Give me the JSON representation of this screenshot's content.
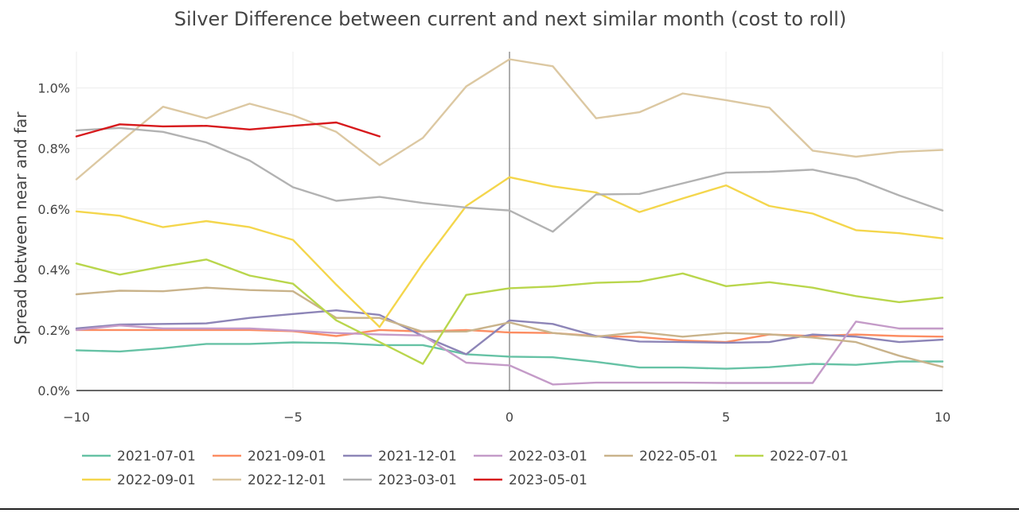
{
  "chart_data": {
    "type": "line",
    "title": "Silver Difference between current and next similar month (cost to roll)",
    "xlabel": "",
    "ylabel": "Spread between near and far",
    "xlim": [
      -10,
      10
    ],
    "ylim": [
      0,
      1.12
    ],
    "x_ticks": [
      -10,
      -5,
      0,
      5,
      10
    ],
    "x_tick_labels": [
      "−10",
      "−5",
      "0",
      "5",
      "10"
    ],
    "y_ticks": [
      0,
      0.2,
      0.4,
      0.6,
      0.8,
      1.0
    ],
    "y_tick_labels": [
      "0.0%",
      "0.2%",
      "0.4%",
      "0.6%",
      "0.8%",
      "1.0%"
    ],
    "grid": true,
    "legend_position": "bottom",
    "series": [
      {
        "name": "2021-07-01",
        "color": "#66c2a5",
        "x": [
          -10,
          -9,
          -8,
          -7,
          -6,
          -5,
          -4,
          -3,
          -2,
          -1,
          0,
          1,
          2,
          3,
          4,
          5,
          6,
          7,
          8,
          9,
          10
        ],
        "y": [
          0.133,
          0.129,
          0.14,
          0.154,
          0.154,
          0.159,
          0.157,
          0.15,
          0.15,
          0.12,
          0.112,
          0.11,
          0.095,
          0.076,
          0.076,
          0.072,
          0.077,
          0.088,
          0.085,
          0.096,
          0.096
        ]
      },
      {
        "name": "2021-09-01",
        "color": "#fc8d62",
        "x": [
          -10,
          -9,
          -8,
          -7,
          -6,
          -5,
          -4,
          -3,
          -2,
          -1,
          0,
          1,
          2,
          3,
          4,
          5,
          6,
          7,
          8,
          9,
          10
        ],
        "y": [
          0.2,
          0.2,
          0.2,
          0.2,
          0.2,
          0.196,
          0.18,
          0.2,
          0.195,
          0.2,
          0.192,
          0.19,
          0.18,
          0.177,
          0.165,
          0.16,
          0.185,
          0.18,
          0.185,
          0.18,
          0.178
        ]
      },
      {
        "name": "2021-12-01",
        "color": "#8d85b7",
        "x": [
          -10,
          -9,
          -8,
          -7,
          -6,
          -5,
          -4,
          -3,
          -2,
          -1,
          0,
          1,
          2,
          3,
          4,
          5,
          6,
          7,
          8,
          9,
          10
        ],
        "y": [
          0.205,
          0.218,
          0.22,
          0.222,
          0.24,
          0.253,
          0.265,
          0.25,
          0.18,
          0.12,
          0.232,
          0.22,
          0.18,
          0.162,
          0.16,
          0.158,
          0.16,
          0.185,
          0.178,
          0.16,
          0.168
        ]
      },
      {
        "name": "2022-03-01",
        "color": "#c49bc8",
        "x": [
          -10,
          -9,
          -8,
          -7,
          -6,
          -5,
          -4,
          -3,
          -2,
          -1,
          0,
          1,
          2,
          3,
          4,
          5,
          6,
          7,
          8,
          9,
          10
        ],
        "y": [
          0.2,
          0.215,
          0.205,
          0.205,
          0.205,
          0.198,
          0.19,
          0.185,
          0.182,
          0.092,
          0.083,
          0.02,
          0.026,
          0.026,
          0.026,
          0.025,
          0.025,
          0.025,
          0.228,
          0.205,
          0.205
        ]
      },
      {
        "name": "2022-05-01",
        "color": "#c9b38b",
        "x": [
          -10,
          -9,
          -8,
          -7,
          -6,
          -5,
          -4,
          -3,
          -2,
          -1,
          0,
          1,
          2,
          3,
          4,
          5,
          6,
          7,
          8,
          9,
          10
        ],
        "y": [
          0.318,
          0.33,
          0.328,
          0.34,
          0.332,
          0.328,
          0.24,
          0.24,
          0.194,
          0.195,
          0.225,
          0.19,
          0.178,
          0.193,
          0.178,
          0.19,
          0.186,
          0.175,
          0.16,
          0.115,
          0.078
        ]
      },
      {
        "name": "2022-07-01",
        "color": "#b9d64c",
        "x": [
          -10,
          -9,
          -8,
          -7,
          -6,
          -5,
          -4,
          -3,
          -2,
          -1,
          0,
          1,
          2,
          3,
          4,
          5,
          6,
          7,
          8,
          9,
          10
        ],
        "y": [
          0.42,
          0.383,
          0.41,
          0.433,
          0.38,
          0.353,
          0.232,
          0.16,
          0.088,
          0.316,
          0.338,
          0.344,
          0.356,
          0.36,
          0.387,
          0.345,
          0.358,
          0.34,
          0.312,
          0.292,
          0.307
        ]
      },
      {
        "name": "2022-09-01",
        "color": "#f4d64c",
        "x": [
          -10,
          -9,
          -8,
          -7,
          -6,
          -5,
          -4,
          -3,
          -2,
          -1,
          0,
          1,
          2,
          3,
          4,
          5,
          6,
          7,
          8,
          9,
          10
        ],
        "y": [
          0.592,
          0.578,
          0.54,
          0.56,
          0.54,
          0.498,
          0.35,
          0.21,
          0.42,
          0.61,
          0.705,
          0.675,
          0.655,
          0.59,
          0.635,
          0.678,
          0.61,
          0.585,
          0.53,
          0.52,
          0.503
        ]
      },
      {
        "name": "2022-12-01",
        "color": "#dcc8a2",
        "x": [
          -10,
          -9,
          -8,
          -7,
          -6,
          -5,
          -4,
          -3,
          -2,
          -1,
          0,
          1,
          2,
          3,
          4,
          5,
          6,
          7,
          8,
          9,
          10
        ],
        "y": [
          0.698,
          0.82,
          0.938,
          0.9,
          0.948,
          0.91,
          0.855,
          0.745,
          0.835,
          1.005,
          1.095,
          1.072,
          0.9,
          0.92,
          0.982,
          0.96,
          0.935,
          0.793,
          0.773,
          0.789,
          0.795
        ]
      },
      {
        "name": "2023-03-01",
        "color": "#b2b2b2",
        "x": [
          -10,
          -9,
          -8,
          -7,
          -6,
          -5,
          -4,
          -3,
          -2,
          -1,
          0,
          1,
          2,
          3,
          4,
          5,
          6,
          7,
          8,
          9,
          10
        ],
        "y": [
          0.86,
          0.868,
          0.855,
          0.82,
          0.76,
          0.672,
          0.627,
          0.64,
          0.62,
          0.605,
          0.595,
          0.525,
          0.648,
          0.65,
          0.685,
          0.72,
          0.723,
          0.73,
          0.7,
          0.645,
          0.595
        ]
      },
      {
        "name": "2023-05-01",
        "color": "#d7191c",
        "x": [
          -10,
          -9,
          -8,
          -7,
          -6,
          -5,
          -4,
          -3
        ],
        "y": [
          0.84,
          0.88,
          0.873,
          0.875,
          0.863,
          0.875,
          0.886,
          0.84
        ]
      }
    ]
  }
}
